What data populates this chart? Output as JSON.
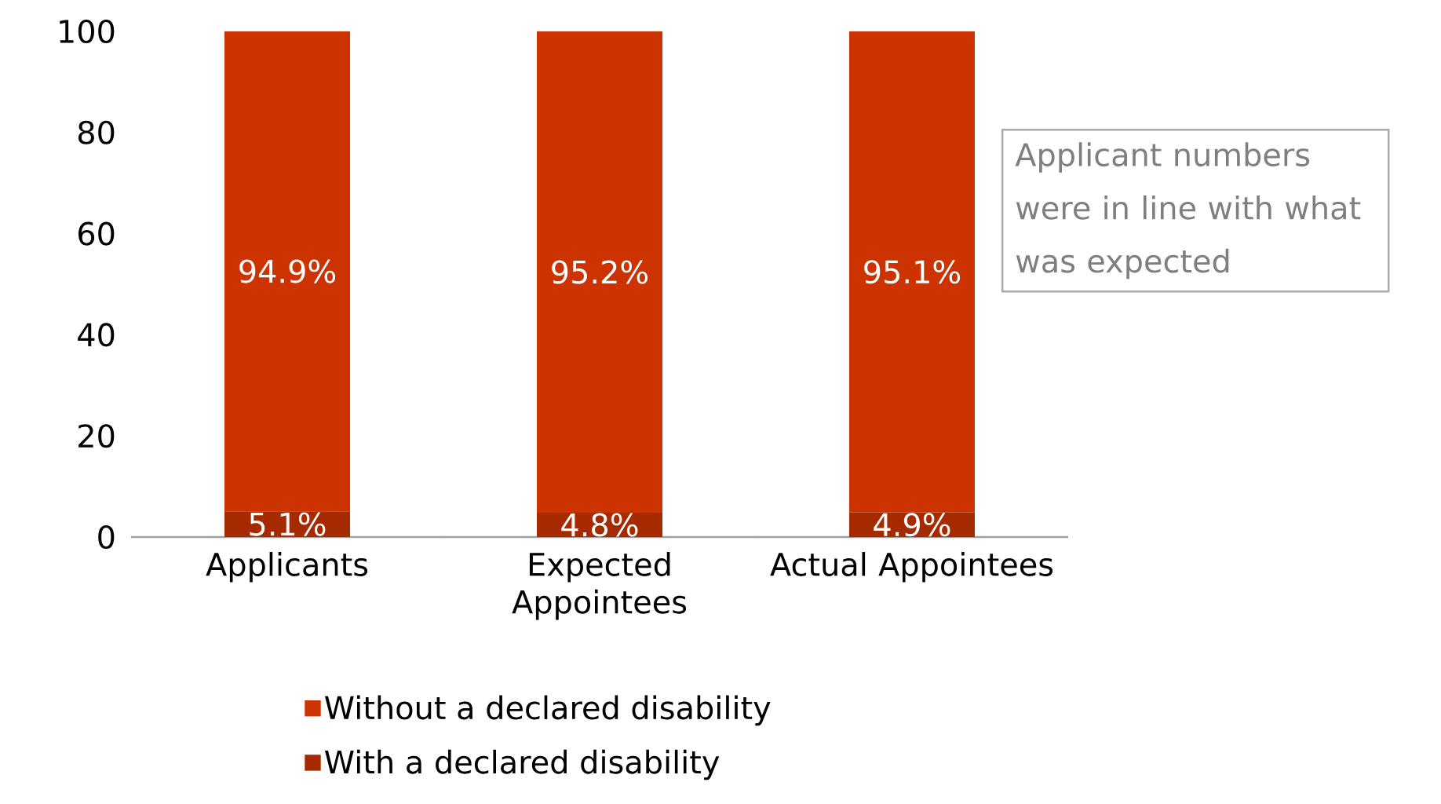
{
  "chart_data": {
    "type": "bar",
    "stacked": true,
    "categories": [
      "Applicants",
      "Expected Appointees",
      "Actual Appointees"
    ],
    "series": [
      {
        "name": "With a declared disability",
        "color": "#a52a00",
        "values": [
          5.1,
          4.8,
          4.9
        ],
        "value_labels": [
          "5.1%",
          "4.8%",
          "4.9%"
        ]
      },
      {
        "name": "Without a declared disability",
        "color": "#cc3300",
        "values": [
          94.9,
          95.2,
          95.1
        ],
        "value_labels": [
          "94.9%",
          "95.2%",
          "95.1%"
        ]
      }
    ],
    "ylim": [
      0,
      100
    ],
    "yticks": [
      0,
      20,
      40,
      60,
      80,
      100
    ],
    "grid": false,
    "legend": "bottom",
    "annotations": [
      "Applicant numbers were in line with what was expected"
    ]
  }
}
